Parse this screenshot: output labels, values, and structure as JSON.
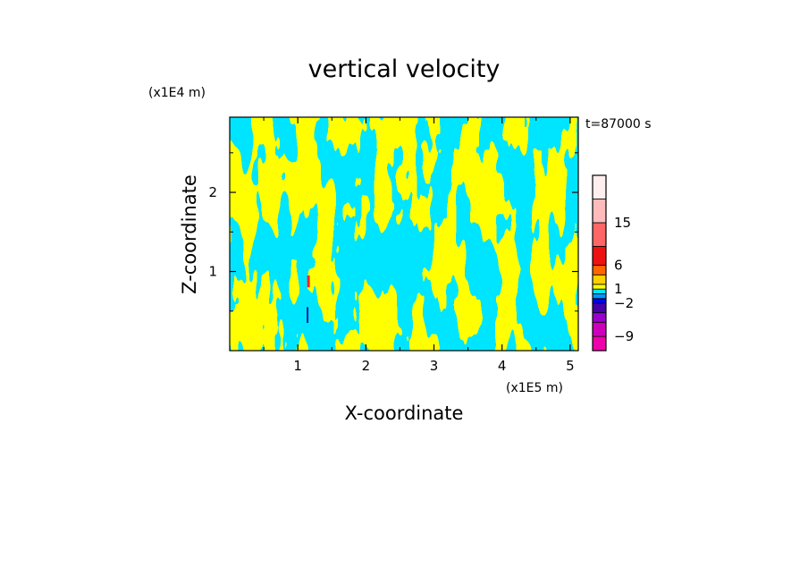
{
  "chart_data": {
    "type": "heatmap",
    "title": "vertical velocity",
    "xlabel": "X-coordinate",
    "ylabel": "Z-coordinate",
    "x_unit": "(x1E5 m)",
    "y_unit": "(x1E4 m)",
    "annotation": "t=87000 s",
    "xlim": [
      0,
      5.12
    ],
    "ylim": [
      0,
      2.95
    ],
    "x_ticks": [
      1,
      2,
      3,
      4,
      5
    ],
    "x_tick_labels": [
      "1",
      "2",
      "3",
      "4",
      "5"
    ],
    "y_ticks": [
      1,
      2
    ],
    "y_tick_labels": [
      "1",
      "2"
    ],
    "field_colors": {
      "positive": "#ffff00",
      "negative": "#00e5ff",
      "updraft_core": "#ff2020",
      "downdraft_core": "#1a1aa0"
    },
    "colorbar": {
      "levels": [
        -12,
        -9,
        -6,
        -4,
        -2,
        -1,
        0,
        1,
        2,
        4,
        6,
        10,
        15,
        20,
        25
      ],
      "colors": [
        "#ee00aa",
        "#cc00bb",
        "#9900cc",
        "#4400aa",
        "#0000ff",
        "#0099ff",
        "#00e5ff",
        "#ffff00",
        "#ffd000",
        "#ff6600",
        "#ee1111",
        "#ff6666",
        "#ffbbbb",
        "#ffeeee"
      ],
      "tick_values": [
        15,
        6,
        1,
        -2,
        -9
      ],
      "tick_labels": [
        "15",
        "6",
        "1",
        "−2",
        "−9"
      ]
    }
  }
}
